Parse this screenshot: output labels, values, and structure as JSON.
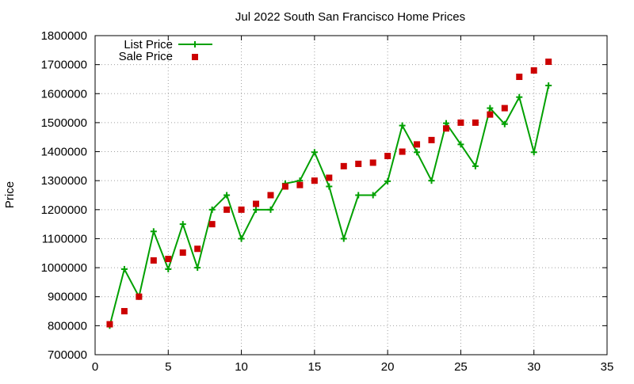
{
  "chart_data": {
    "type": "line",
    "title": "Jul 2022 South San Francisco Home Prices",
    "xlabel": "",
    "ylabel": "Price",
    "xlim": [
      0,
      35
    ],
    "ylim": [
      700000,
      1800000
    ],
    "x_ticks": [
      0,
      5,
      10,
      15,
      20,
      25,
      30,
      35
    ],
    "y_ticks": [
      700000,
      800000,
      900000,
      1000000,
      1100000,
      1200000,
      1300000,
      1400000,
      1500000,
      1600000,
      1700000,
      1800000
    ],
    "grid": true,
    "grid_style": "dotted",
    "legend_position": "top-left",
    "series": [
      {
        "name": "List Price",
        "style": "line with plus markers",
        "color": "#00A000",
        "x": [
          1,
          2,
          3,
          4,
          5,
          6,
          7,
          8,
          9,
          10,
          11,
          12,
          13,
          14,
          15,
          16,
          17,
          18,
          19,
          20,
          21,
          22,
          23,
          24,
          25,
          26,
          27,
          28,
          29,
          30,
          31
        ],
        "values": [
          800000,
          995000,
          900000,
          1125000,
          995000,
          1150000,
          1000000,
          1200000,
          1250000,
          1100000,
          1200000,
          1200000,
          1290000,
          1300000,
          1398000,
          1280000,
          1100000,
          1250000,
          1250000,
          1298000,
          1490000,
          1398000,
          1300000,
          1498000,
          1425000,
          1350000,
          1550000,
          1495000,
          1588000,
          1398000,
          1628000
        ]
      },
      {
        "name": "Sale Price",
        "style": "square markers",
        "color": "#CC0000",
        "x": [
          1,
          2,
          3,
          4,
          5,
          6,
          7,
          8,
          9,
          10,
          11,
          12,
          13,
          14,
          15,
          16,
          17,
          18,
          19,
          20,
          21,
          22,
          23,
          24,
          25,
          26,
          27,
          28,
          29,
          30,
          31
        ],
        "values": [
          805000,
          850000,
          900000,
          1025000,
          1030000,
          1052000,
          1065000,
          1150000,
          1200000,
          1200000,
          1220000,
          1250000,
          1280000,
          1285000,
          1300000,
          1310000,
          1350000,
          1358000,
          1362000,
          1385000,
          1400000,
          1425000,
          1440000,
          1480000,
          1500000,
          1500000,
          1528000,
          1550000,
          1658000,
          1680000,
          1710000
        ]
      }
    ]
  }
}
